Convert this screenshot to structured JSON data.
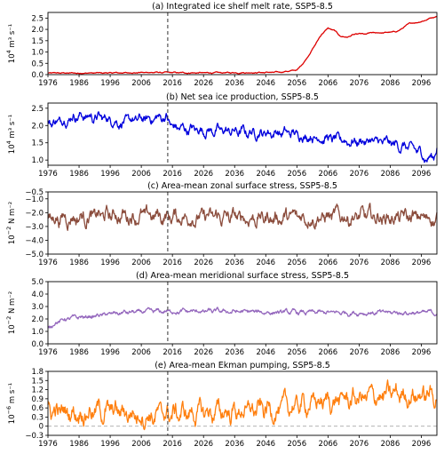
{
  "chart_data": [
    {
      "type": "line",
      "title": "(a) Integrated ice shelf melt rate, SSP5-8.5",
      "ylabel_base": "10",
      "ylabel_exp": "4",
      "ylabel_rest": " m³ s⁻¹",
      "xlim": [
        1976,
        2101
      ],
      "ylim": [
        0,
        2.75
      ],
      "yticks": [
        0,
        0.5,
        1.0,
        1.5,
        2.0,
        2.5
      ],
      "ytick_labels": [
        "0.0",
        "0.5",
        "1.0",
        "1.5",
        "2.0",
        "2.5"
      ],
      "xticks": [
        1976,
        1986,
        1996,
        2006,
        2016,
        2026,
        2036,
        2046,
        2056,
        2066,
        2076,
        2086,
        2096
      ],
      "color": "#dd0000",
      "vline": 2014.5,
      "x": [
        1976,
        1980,
        1990,
        2000,
        2010,
        2014,
        2020,
        2030,
        2040,
        2050,
        2056,
        2058,
        2060,
        2062,
        2064,
        2066,
        2068,
        2070,
        2072,
        2074,
        2076,
        2078,
        2080,
        2084,
        2088,
        2090,
        2092,
        2096,
        2100,
        2101
      ],
      "y": [
        0.07,
        0.07,
        0.07,
        0.08,
        0.1,
        0.09,
        0.08,
        0.08,
        0.09,
        0.1,
        0.2,
        0.5,
        0.9,
        1.35,
        1.8,
        2.05,
        1.95,
        1.7,
        1.65,
        1.75,
        1.8,
        1.78,
        1.85,
        1.85,
        1.9,
        2.05,
        2.25,
        2.35,
        2.55,
        2.6
      ],
      "noise": 0.03
    },
    {
      "type": "line",
      "title": "(b) Net sea ice production, SSP5-8.5",
      "ylabel_base": "10",
      "ylabel_exp": "4",
      "ylabel_rest": " m³ s⁻¹",
      "xlim": [
        1976,
        2101
      ],
      "ylim": [
        0.85,
        2.65
      ],
      "yticks": [
        1.0,
        1.5,
        2.0,
        2.5
      ],
      "ytick_labels": [
        "1.0",
        "1.5",
        "2.0",
        "2.5"
      ],
      "xticks": [
        1976,
        1986,
        1996,
        2006,
        2016,
        2026,
        2036,
        2046,
        2056,
        2066,
        2076,
        2086,
        2096
      ],
      "color": "#0000dd",
      "vline": 2014.5,
      "x": [
        1976,
        1980,
        1985,
        1990,
        1995,
        2000,
        2005,
        2010,
        2014,
        2016,
        2020,
        2030,
        2040,
        2050,
        2060,
        2065,
        2070,
        2080,
        2090,
        2095,
        2098,
        2100,
        2101
      ],
      "y": [
        2.05,
        2.15,
        2.3,
        2.25,
        2.2,
        2.1,
        2.15,
        2.2,
        2.25,
        1.95,
        1.9,
        1.85,
        1.8,
        1.8,
        1.7,
        1.65,
        1.55,
        1.55,
        1.4,
        1.25,
        1.05,
        1.1,
        1.4
      ],
      "noise": 0.18
    },
    {
      "type": "line",
      "title": "(c) Area-mean zonal surface stress, SSP5-8.5",
      "ylabel_base": "10",
      "ylabel_exp": "−2",
      "ylabel_rest": " N m⁻²",
      "xlim": [
        1976,
        2101
      ],
      "ylim": [
        -5.0,
        -0.5
      ],
      "yticks": [
        -5.0,
        -4.0,
        -3.0,
        -2.0,
        -1.0,
        -0.5
      ],
      "ytick_labels": [
        "−5.0",
        "−4.0",
        "−3.0",
        "−2.0",
        "−1.0",
        "−0.5"
      ],
      "xticks": [
        1976,
        1986,
        1996,
        2006,
        2016,
        2026,
        2036,
        2046,
        2056,
        2066,
        2076,
        2086,
        2096
      ],
      "color": "#8b4c3c",
      "vline": 2014.5,
      "x": [
        1976,
        2000,
        2014,
        2040,
        2070,
        2101
      ],
      "y": [
        -2.4,
        -2.2,
        -2.3,
        -2.4,
        -2.3,
        -2.4
      ],
      "noise": 0.65
    },
    {
      "type": "line",
      "title": "(d) Area-mean meridional surface stress, SSP5-8.5",
      "ylabel_base": "10",
      "ylabel_exp": "−2",
      "ylabel_rest": " N m⁻²",
      "xlim": [
        1976,
        2101
      ],
      "ylim": [
        0,
        5.0
      ],
      "yticks": [
        0,
        1.0,
        2.0,
        3.0,
        4.0,
        5.0
      ],
      "ytick_labels": [
        "0.0",
        "1.0",
        "2.0",
        "3.0",
        "4.0",
        "5.0"
      ],
      "xticks": [
        1976,
        1986,
        1996,
        2006,
        2016,
        2026,
        2036,
        2046,
        2056,
        2066,
        2076,
        2086,
        2096
      ],
      "color": "#9467bd",
      "vline": 2014.5,
      "x": [
        1976,
        1978,
        1982,
        1990,
        2000,
        2014,
        2030,
        2060,
        2101
      ],
      "y": [
        1.2,
        1.7,
        2.0,
        2.2,
        2.5,
        2.6,
        2.6,
        2.5,
        2.5
      ],
      "noise": 0.22
    },
    {
      "type": "line",
      "title": "(e) Area-mean Ekman pumping, SSP5-8.5",
      "ylabel_base": "10",
      "ylabel_exp": "−6",
      "ylabel_rest": " m s⁻¹",
      "xlim": [
        1976,
        2101
      ],
      "ylim": [
        -0.3,
        1.8
      ],
      "yticks": [
        -0.3,
        0,
        0.3,
        0.6,
        0.9,
        1.2,
        1.5,
        1.8
      ],
      "ytick_labels": [
        "−0.3",
        "0",
        "0.3",
        "0.6",
        "0.9",
        "1.2",
        "1.5",
        "1.8"
      ],
      "xticks": [
        1976,
        1986,
        1996,
        2006,
        2016,
        2026,
        2036,
        2046,
        2056,
        2066,
        2076,
        2086,
        2096
      ],
      "color": "#ff7f0e",
      "vline": 2014.5,
      "zero_line": 0,
      "x": [
        1976,
        1990,
        2000,
        2010,
        2014,
        2030,
        2050,
        2060,
        2080,
        2090,
        2101
      ],
      "y": [
        0.45,
        0.5,
        0.45,
        0.35,
        0.4,
        0.45,
        0.55,
        0.75,
        0.95,
        1.05,
        1.0
      ],
      "noise": 0.38
    }
  ]
}
